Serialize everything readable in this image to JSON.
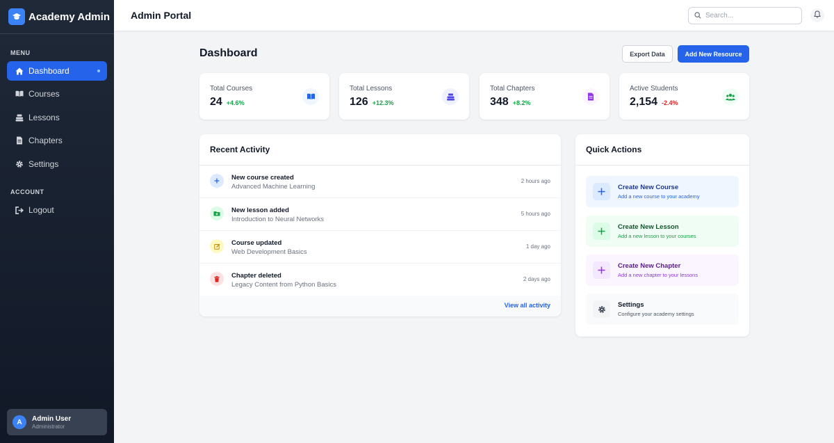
{
  "sidebar": {
    "brand": "Academy Admin",
    "menu_label": "MENU",
    "account_label": "ACCOUNT",
    "items": [
      {
        "label": "Dashboard",
        "icon": "home-icon"
      },
      {
        "label": "Courses",
        "icon": "book-open-icon"
      },
      {
        "label": "Lessons",
        "icon": "layers-icon"
      },
      {
        "label": "Chapters",
        "icon": "file-icon"
      },
      {
        "label": "Settings",
        "icon": "gear-icon"
      }
    ],
    "logout": "Logout",
    "user": {
      "initial": "A",
      "name": "Admin User",
      "role": "Administrator"
    }
  },
  "header": {
    "title": "Admin Portal",
    "search_placeholder": "Search..."
  },
  "main": {
    "title": "Dashboard",
    "export_label": "Export Data",
    "add_label": "Add New Resource"
  },
  "stats": [
    {
      "label": "Total Courses",
      "value": "24",
      "delta": "+4.6%",
      "trend": "up",
      "icon": "book-open-icon"
    },
    {
      "label": "Total Lessons",
      "value": "126",
      "delta": "+12.3%",
      "trend": "up",
      "icon": "layers-icon"
    },
    {
      "label": "Total Chapters",
      "value": "348",
      "delta": "+8.2%",
      "trend": "up",
      "icon": "file-icon"
    },
    {
      "label": "Active Students",
      "value": "2,154",
      "delta": "-2.4%",
      "trend": "down",
      "icon": "users-icon"
    }
  ],
  "activity": {
    "title": "Recent Activity",
    "items": [
      {
        "title": "New course created",
        "subtitle": "Advanced Machine Learning",
        "time": "2 hours ago",
        "icon": "plus-icon"
      },
      {
        "title": "New lesson added",
        "subtitle": "Introduction to Neural Networks",
        "time": "5 hours ago",
        "icon": "folder-plus-icon"
      },
      {
        "title": "Course updated",
        "subtitle": "Web Development Basics",
        "time": "1 day ago",
        "icon": "edit-icon"
      },
      {
        "title": "Chapter deleted",
        "subtitle": "Legacy Content from Python Basics",
        "time": "2 days ago",
        "icon": "trash-icon"
      }
    ],
    "view_all": "View all activity"
  },
  "quick_actions": {
    "title": "Quick Actions",
    "items": [
      {
        "title": "Create New Course",
        "subtitle": "Add a new course to your academy",
        "icon": "plus-icon"
      },
      {
        "title": "Create New Lesson",
        "subtitle": "Add a new lesson to your courses",
        "icon": "plus-icon"
      },
      {
        "title": "Create New Chapter",
        "subtitle": "Add a new chapter to your lessons",
        "icon": "plus-icon"
      },
      {
        "title": "Settings",
        "subtitle": "Configure your academy settings",
        "icon": "gear-icon"
      }
    ]
  },
  "colors": {
    "primary": "#2563eb",
    "positive": "#16a34a",
    "negative": "#dc2626",
    "sidebar_bg": "#1f2937"
  }
}
